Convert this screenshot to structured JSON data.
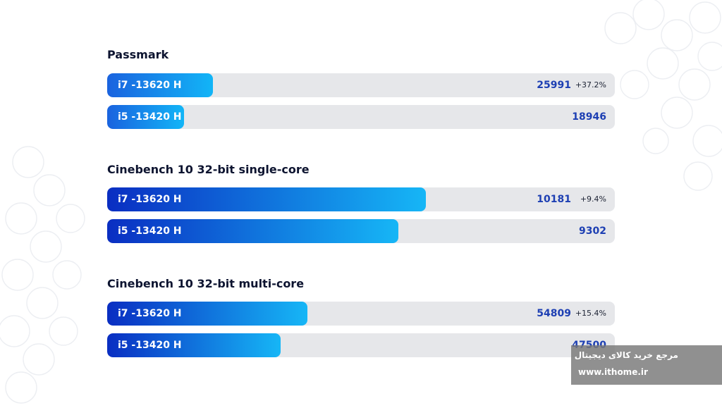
{
  "chart_data": [
    {
      "type": "bar",
      "orientation": "horizontal",
      "title": "Passmark",
      "categories": [
        "i7 -13620 H",
        "i5 -13420 H"
      ],
      "values": [
        25991,
        18946
      ],
      "value_labels": [
        "25991",
        "18946"
      ],
      "delta_label": "+37.2%",
      "xlim": [
        0,
        125000
      ],
      "colors": [
        "#1a63df",
        "#12b5f7"
      ]
    },
    {
      "type": "bar",
      "orientation": "horizontal",
      "title": "Cinebench 10 32-bit single-core",
      "categories": [
        "i7 -13620 H",
        "i5 -13420 H"
      ],
      "values": [
        10181,
        9302
      ],
      "value_labels": [
        "10181",
        "9302"
      ],
      "delta_label": "+9.4%",
      "xlim": [
        0,
        16200
      ],
      "colors": [
        "#0a2ec2",
        "#16b6f6"
      ]
    },
    {
      "type": "bar",
      "orientation": "horizontal",
      "title": "Cinebench 10 32-bit multi-core",
      "categories": [
        "i7 -13620 H",
        "i5 -13420 H"
      ],
      "values": [
        54809,
        47500
      ],
      "value_labels": [
        "54809",
        "47500"
      ],
      "delta_label": "+15.4%",
      "xlim": [
        0,
        139000
      ],
      "colors": [
        "#0a2ec2",
        "#16b6f6"
      ]
    }
  ],
  "watermark": {
    "persian_text": "مرجع خرید کالای دیجیتال",
    "url": "www.ithome.ir"
  }
}
